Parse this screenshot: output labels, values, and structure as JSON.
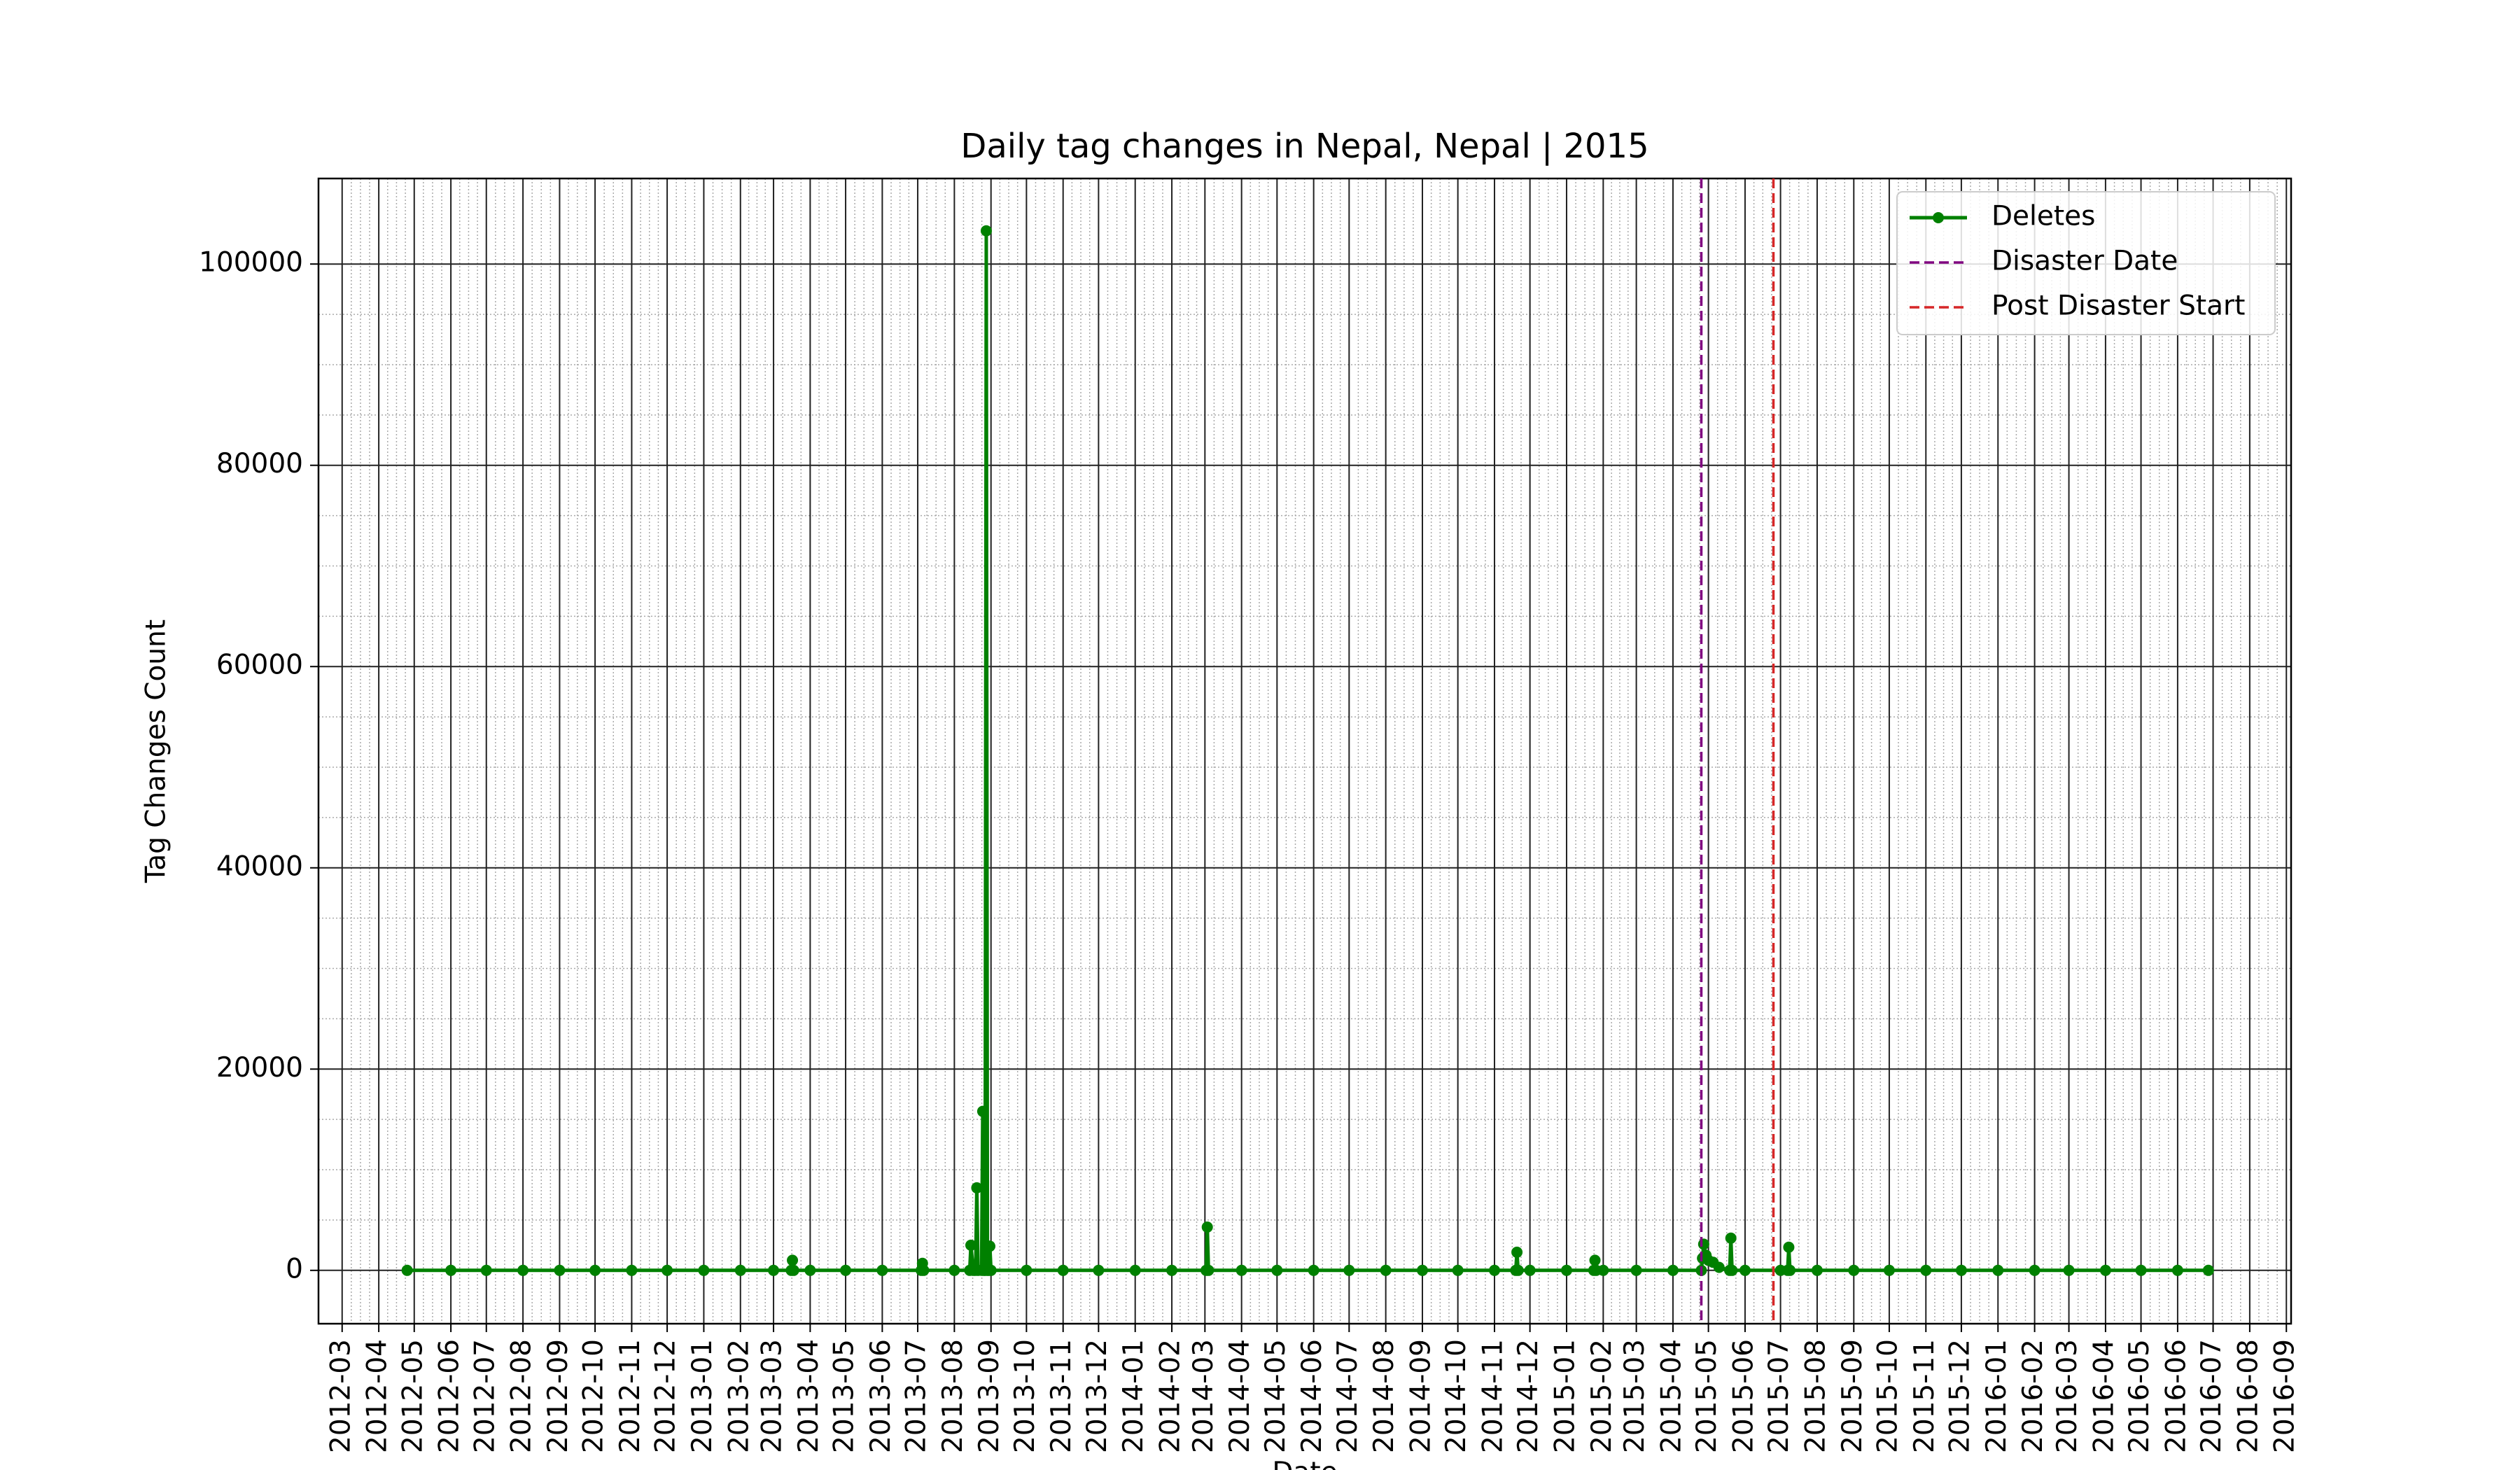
{
  "chart_data": {
    "type": "line",
    "title": "Daily tag changes in Nepal, Nepal | 2015",
    "xlabel": "Date",
    "ylabel": "Tag Changes Count",
    "x": [
      "2012-04-25",
      "2012-06-01",
      "2012-07-01",
      "2012-08-01",
      "2012-09-01",
      "2012-10-01",
      "2012-11-01",
      "2012-12-01",
      "2013-01-01",
      "2013-02-01",
      "2013-03-01",
      "2013-03-16",
      "2013-03-17",
      "2013-03-18",
      "2013-04-01",
      "2013-05-01",
      "2013-06-01",
      "2013-07-04",
      "2013-07-05",
      "2013-07-06",
      "2013-08-01",
      "2013-08-14",
      "2013-08-15",
      "2013-08-17",
      "2013-08-19",
      "2013-08-20",
      "2013-08-21",
      "2013-08-24",
      "2013-08-25",
      "2013-08-26",
      "2013-08-27",
      "2013-08-28",
      "2013-08-29",
      "2013-08-30",
      "2013-08-31",
      "2013-09-01",
      "2013-10-01",
      "2013-11-01",
      "2013-12-01",
      "2014-01-01",
      "2014-02-01",
      "2014-03-02",
      "2014-03-03",
      "2014-03-04",
      "2014-04-01",
      "2014-05-01",
      "2014-06-01",
      "2014-07-01",
      "2014-08-01",
      "2014-09-01",
      "2014-10-01",
      "2014-11-01",
      "2014-11-19",
      "2014-11-20",
      "2014-11-21",
      "2014-12-01",
      "2015-01-01",
      "2015-01-24",
      "2015-01-25",
      "2015-01-26",
      "2015-02-01",
      "2015-03-01",
      "2015-04-01",
      "2015-04-25",
      "2015-04-26",
      "2015-04-27",
      "2015-04-29",
      "2015-05-01",
      "2015-05-05",
      "2015-05-10",
      "2015-05-19",
      "2015-05-20",
      "2015-05-21",
      "2015-06-01",
      "2015-07-01",
      "2015-07-07",
      "2015-07-08",
      "2015-07-09",
      "2015-08-01",
      "2015-09-01",
      "2015-10-01",
      "2015-11-01",
      "2015-12-01",
      "2016-01-01",
      "2016-02-01",
      "2016-03-01",
      "2016-04-01",
      "2016-05-01",
      "2016-06-01",
      "2016-06-27"
    ],
    "series": [
      {
        "name": "Deletes",
        "color": "#008000",
        "values": [
          0,
          0,
          0,
          0,
          0,
          0,
          0,
          0,
          0,
          0,
          0,
          0,
          1000,
          0,
          0,
          0,
          0,
          0,
          700,
          0,
          0,
          0,
          2500,
          0,
          0,
          8200,
          0,
          0,
          15800,
          0,
          0,
          103300,
          0,
          0,
          2400,
          0,
          0,
          0,
          0,
          0,
          0,
          0,
          4300,
          0,
          0,
          0,
          0,
          0,
          0,
          0,
          0,
          0,
          0,
          1800,
          0,
          0,
          0,
          0,
          1000,
          0,
          0,
          0,
          0,
          0,
          1200,
          2600,
          1500,
          1000,
          800,
          300,
          0,
          3200,
          0,
          0,
          0,
          0,
          2300,
          0,
          0,
          0,
          0,
          0,
          0,
          0,
          0,
          0,
          0,
          0,
          0,
          0
        ]
      }
    ],
    "vlines": [
      {
        "name": "Disaster Date",
        "x": "2015-04-25",
        "color": "#800080"
      },
      {
        "name": "Post Disaster Start",
        "x": "2015-06-25",
        "color": "#d62728"
      }
    ],
    "xlim": [
      "2012-02-10",
      "2016-09-05"
    ],
    "xticks": [
      "2012-03",
      "2012-04",
      "2012-05",
      "2012-06",
      "2012-07",
      "2012-08",
      "2012-09",
      "2012-10",
      "2012-11",
      "2012-12",
      "2013-01",
      "2013-02",
      "2013-03",
      "2013-04",
      "2013-05",
      "2013-06",
      "2013-07",
      "2013-08",
      "2013-09",
      "2013-10",
      "2013-11",
      "2013-12",
      "2014-01",
      "2014-02",
      "2014-03",
      "2014-04",
      "2014-05",
      "2014-06",
      "2014-07",
      "2014-08",
      "2014-09",
      "2014-10",
      "2014-11",
      "2014-12",
      "2015-01",
      "2015-02",
      "2015-03",
      "2015-04",
      "2015-05",
      "2015-06",
      "2015-07",
      "2015-08",
      "2015-09",
      "2015-10",
      "2015-11",
      "2015-12",
      "2016-01",
      "2016-02",
      "2016-03",
      "2016-04",
      "2016-05",
      "2016-06",
      "2016-07",
      "2016-08",
      "2016-09"
    ],
    "ylim": [
      -5300,
      108500
    ],
    "yticks": [
      0,
      20000,
      40000,
      60000,
      80000,
      100000
    ],
    "grid": true,
    "minor_grid": true,
    "legend": "upper right"
  }
}
